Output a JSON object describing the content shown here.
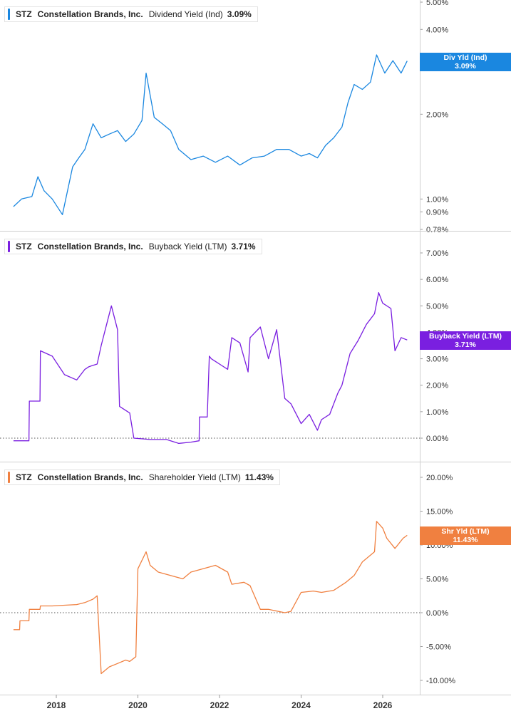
{
  "ticker": "STZ",
  "company": "Constellation Brands, Inc.",
  "x_ticks": [
    "2018",
    "2020",
    "2022",
    "2024",
    "2026"
  ],
  "chart_data": [
    {
      "type": "line",
      "metric": "Dividend Yield (Ind)",
      "current_value": "3.09%",
      "badge_label": "Div Yld (Ind)",
      "color": "#1a87e0",
      "y_scale": "log",
      "ylim": [
        0.78,
        5.0
      ],
      "y_ticks": [
        {
          "v": 5.0,
          "label": "5.00%"
        },
        {
          "v": 4.0,
          "label": "4.00%"
        },
        {
          "v": 3.0,
          "label": "3.00%"
        },
        {
          "v": 2.0,
          "label": "2.00%"
        },
        {
          "v": 1.0,
          "label": "1.00%"
        },
        {
          "v": 0.9,
          "label": "0.90%"
        },
        {
          "v": 0.78,
          "label": "0.78%"
        }
      ],
      "x": [
        2016.95,
        2017.15,
        2017.4,
        2017.55,
        2017.7,
        2017.9,
        2018.15,
        2018.4,
        2018.55,
        2018.7,
        2018.9,
        2019.1,
        2019.3,
        2019.5,
        2019.7,
        2019.9,
        2020.1,
        2020.2,
        2020.4,
        2020.6,
        2020.8,
        2021.0,
        2021.3,
        2021.6,
        2021.9,
        2022.2,
        2022.5,
        2022.8,
        2023.1,
        2023.4,
        2023.7,
        2024.0,
        2024.2,
        2024.4,
        2024.6,
        2024.8,
        2025.0,
        2025.15,
        2025.3,
        2025.5,
        2025.7,
        2025.85,
        2026.05,
        2026.25,
        2026.45,
        2026.6
      ],
      "values": [
        0.94,
        1.0,
        1.02,
        1.2,
        1.07,
        1.0,
        0.88,
        1.3,
        1.4,
        1.5,
        1.85,
        1.65,
        1.7,
        1.75,
        1.6,
        1.7,
        1.9,
        2.8,
        1.95,
        1.85,
        1.75,
        1.5,
        1.38,
        1.42,
        1.35,
        1.42,
        1.32,
        1.4,
        1.42,
        1.5,
        1.5,
        1.42,
        1.45,
        1.4,
        1.55,
        1.65,
        1.8,
        2.2,
        2.55,
        2.45,
        2.6,
        3.25,
        2.8,
        3.1,
        2.8,
        3.09
      ]
    },
    {
      "type": "line",
      "metric": "Buyback Yield (LTM)",
      "current_value": "3.71%",
      "badge_label": "Buyback Yield (LTM)",
      "color": "#7a1fe0",
      "ylim": [
        -1.0,
        7.75
      ],
      "y_ticks": [
        {
          "v": 7,
          "label": "7.00%"
        },
        {
          "v": 6,
          "label": "6.00%"
        },
        {
          "v": 5,
          "label": "5.00%"
        },
        {
          "v": 4,
          "label": "4.00%"
        },
        {
          "v": 3,
          "label": "3.00%"
        },
        {
          "v": 2,
          "label": "2.00%"
        },
        {
          "v": 1,
          "label": "1.00%"
        },
        {
          "v": 0,
          "label": "0.00%"
        }
      ],
      "x": [
        2016.95,
        2017.33,
        2017.34,
        2017.6,
        2017.61,
        2017.9,
        2018.2,
        2018.5,
        2018.7,
        2018.8,
        2019.0,
        2019.1,
        2019.2,
        2019.35,
        2019.5,
        2019.55,
        2019.8,
        2019.9,
        2020.3,
        2020.7,
        2021.0,
        2021.3,
        2021.5,
        2021.51,
        2021.7,
        2021.75,
        2021.8,
        2022.0,
        2022.2,
        2022.3,
        2022.5,
        2022.7,
        2022.75,
        2023.0,
        2023.2,
        2023.4,
        2023.6,
        2023.75,
        2024.0,
        2024.2,
        2024.4,
        2024.5,
        2024.7,
        2024.9,
        2025.0,
        2025.2,
        2025.4,
        2025.6,
        2025.8,
        2025.9,
        2026.0,
        2026.2,
        2026.3,
        2026.45,
        2026.6
      ],
      "values": [
        -0.1,
        -0.1,
        1.4,
        1.4,
        3.3,
        3.1,
        2.4,
        2.2,
        2.6,
        2.7,
        2.8,
        3.5,
        4.1,
        5.0,
        4.1,
        1.2,
        0.95,
        0.0,
        -0.05,
        -0.05,
        -0.2,
        -0.15,
        -0.1,
        0.8,
        0.8,
        3.1,
        3.0,
        2.8,
        2.6,
        3.8,
        3.6,
        2.5,
        3.8,
        4.2,
        3.0,
        4.1,
        1.5,
        1.3,
        0.55,
        0.9,
        0.3,
        0.7,
        0.9,
        1.7,
        2.0,
        3.2,
        3.7,
        4.3,
        4.7,
        5.5,
        5.1,
        4.9,
        3.3,
        3.8,
        3.71
      ]
    },
    {
      "type": "line",
      "metric": "Shareholder Yield (LTM)",
      "current_value": "11.43%",
      "badge_label": "Shr Yld (LTM)",
      "color": "#f08040",
      "ylim": [
        -13.0,
        22.5
      ],
      "y_ticks": [
        {
          "v": 20,
          "label": "20.00%"
        },
        {
          "v": 15,
          "label": "15.00%"
        },
        {
          "v": 10,
          "label": "10.00%"
        },
        {
          "v": 5,
          "label": "5.00%"
        },
        {
          "v": 0,
          "label": "0.00%"
        },
        {
          "v": -5,
          "label": "-5.00%"
        },
        {
          "v": -10,
          "label": "-10.00%"
        }
      ],
      "x": [
        2016.95,
        2017.1,
        2017.11,
        2017.33,
        2017.34,
        2017.6,
        2017.61,
        2017.9,
        2018.2,
        2018.5,
        2018.7,
        2018.9,
        2019.0,
        2019.1,
        2019.3,
        2019.5,
        2019.7,
        2019.8,
        2019.95,
        2020.0,
        2020.2,
        2020.3,
        2020.5,
        2020.8,
        2021.1,
        2021.3,
        2021.6,
        2021.9,
        2022.2,
        2022.3,
        2022.6,
        2022.75,
        2023.0,
        2023.2,
        2023.6,
        2023.75,
        2024.0,
        2024.3,
        2024.5,
        2024.8,
        2025.1,
        2025.3,
        2025.5,
        2025.8,
        2025.85,
        2026.0,
        2026.1,
        2026.3,
        2026.5,
        2026.6
      ],
      "values": [
        -2.5,
        -2.5,
        -1.2,
        -1.2,
        0.5,
        0.5,
        1.0,
        1.0,
        1.1,
        1.2,
        1.5,
        2.0,
        2.5,
        -9.0,
        -8.0,
        -7.5,
        -7.0,
        -7.2,
        -6.5,
        6.5,
        9.0,
        7.0,
        6.0,
        5.5,
        5.0,
        6.0,
        6.5,
        7.0,
        6.0,
        4.2,
        4.5,
        4.0,
        0.5,
        0.5,
        0.0,
        0.2,
        3.0,
        3.2,
        3.0,
        3.3,
        4.5,
        5.5,
        7.5,
        9.0,
        13.5,
        12.5,
        11.0,
        9.5,
        11.0,
        11.43
      ]
    }
  ]
}
